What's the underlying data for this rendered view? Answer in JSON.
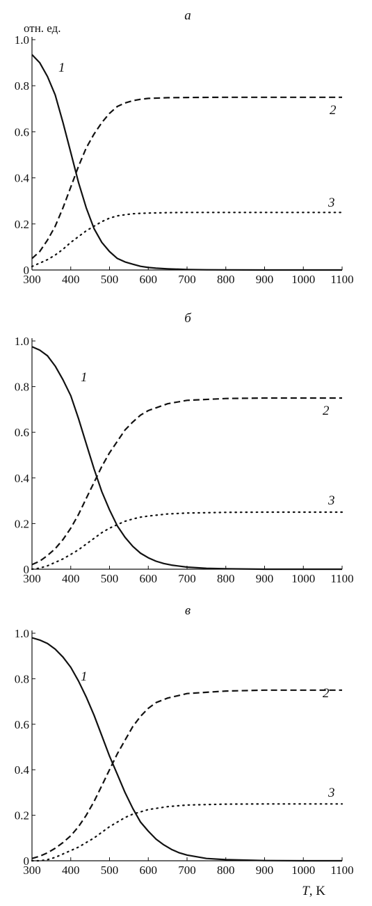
{
  "figure": {
    "y_unit": "отн. ед.",
    "x_label_var": "T",
    "x_label_unit": ", K"
  },
  "chart_data": [
    {
      "type": "line",
      "panel_label": "а",
      "xlim": [
        300,
        1100
      ],
      "ylim": [
        0,
        1.0
      ],
      "x_ticks": [
        "300",
        "400",
        "500",
        "600",
        "700",
        "800",
        "900",
        "1000",
        "1100"
      ],
      "y_ticks": [
        "0",
        "0.2",
        "0.4",
        "0.6",
        "0.8",
        "1.0"
      ],
      "grid": false,
      "series": [
        {
          "name": "1",
          "style": "solid",
          "x": [
            300,
            320,
            340,
            360,
            380,
            400,
            420,
            440,
            460,
            480,
            500,
            520,
            540,
            560,
            580,
            600,
            620,
            650,
            700,
            750,
            800,
            900,
            1000,
            1100
          ],
          "y": [
            0.935,
            0.9,
            0.84,
            0.76,
            0.64,
            0.51,
            0.38,
            0.27,
            0.18,
            0.12,
            0.08,
            0.05,
            0.035,
            0.025,
            0.016,
            0.011,
            0.008,
            0.005,
            0.002,
            0.001,
            0.0005,
            0.0,
            0.0,
            0.0
          ]
        },
        {
          "name": "2",
          "style": "dashed",
          "x": [
            300,
            320,
            340,
            360,
            380,
            400,
            420,
            440,
            460,
            480,
            500,
            520,
            540,
            560,
            580,
            600,
            650,
            700,
            800,
            900,
            1000,
            1100
          ],
          "y": [
            0.05,
            0.08,
            0.13,
            0.19,
            0.27,
            0.36,
            0.45,
            0.53,
            0.59,
            0.64,
            0.68,
            0.71,
            0.725,
            0.735,
            0.741,
            0.745,
            0.748,
            0.749,
            0.75,
            0.75,
            0.75,
            0.75
          ]
        },
        {
          "name": "3",
          "style": "dotted",
          "x": [
            300,
            320,
            340,
            360,
            380,
            400,
            420,
            440,
            460,
            480,
            500,
            520,
            540,
            560,
            580,
            600,
            650,
            700,
            800,
            900,
            1000,
            1100
          ],
          "y": [
            0.015,
            0.03,
            0.045,
            0.065,
            0.09,
            0.12,
            0.145,
            0.17,
            0.19,
            0.21,
            0.225,
            0.235,
            0.24,
            0.244,
            0.246,
            0.247,
            0.249,
            0.25,
            0.25,
            0.25,
            0.25,
            0.25
          ]
        }
      ]
    },
    {
      "type": "line",
      "panel_label": "б",
      "xlim": [
        300,
        1100
      ],
      "ylim": [
        0,
        1.0
      ],
      "x_ticks": [
        "300",
        "400",
        "500",
        "600",
        "700",
        "800",
        "900",
        "1000",
        "1100"
      ],
      "y_ticks": [
        "0",
        "0.2",
        "0.4",
        "0.6",
        "0.8",
        "1.0"
      ],
      "grid": false,
      "series": [
        {
          "name": "1",
          "style": "solid",
          "x": [
            300,
            320,
            340,
            360,
            380,
            400,
            420,
            440,
            460,
            480,
            500,
            520,
            540,
            560,
            580,
            600,
            620,
            640,
            660,
            700,
            750,
            800,
            900,
            1000,
            1100
          ],
          "y": [
            0.975,
            0.96,
            0.935,
            0.89,
            0.83,
            0.76,
            0.66,
            0.55,
            0.44,
            0.34,
            0.26,
            0.19,
            0.14,
            0.1,
            0.07,
            0.05,
            0.035,
            0.025,
            0.018,
            0.009,
            0.004,
            0.002,
            0.0,
            0.0,
            0.0
          ]
        },
        {
          "name": "2",
          "style": "dashed",
          "x": [
            300,
            320,
            340,
            360,
            380,
            400,
            420,
            440,
            460,
            480,
            500,
            520,
            540,
            560,
            580,
            600,
            650,
            700,
            800,
            900,
            1000,
            1100
          ],
          "y": [
            0.02,
            0.035,
            0.06,
            0.09,
            0.13,
            0.18,
            0.24,
            0.31,
            0.38,
            0.45,
            0.51,
            0.56,
            0.61,
            0.645,
            0.675,
            0.695,
            0.725,
            0.74,
            0.748,
            0.75,
            0.75,
            0.75
          ]
        },
        {
          "name": "3",
          "style": "dotted",
          "x": [
            300,
            320,
            340,
            360,
            380,
            400,
            420,
            440,
            460,
            480,
            500,
            520,
            540,
            560,
            580,
            600,
            650,
            700,
            800,
            900,
            1000,
            1100
          ],
          "y": [
            0.0,
            0.005,
            0.015,
            0.03,
            0.045,
            0.065,
            0.085,
            0.11,
            0.135,
            0.16,
            0.18,
            0.195,
            0.21,
            0.22,
            0.228,
            0.233,
            0.242,
            0.246,
            0.249,
            0.25,
            0.25,
            0.25
          ]
        }
      ]
    },
    {
      "type": "line",
      "panel_label": "в",
      "xlim": [
        300,
        1100
      ],
      "ylim": [
        0,
        1.0
      ],
      "x_ticks": [
        "300",
        "400",
        "500",
        "600",
        "700",
        "800",
        "900",
        "1000",
        "1100"
      ],
      "y_ticks": [
        "0",
        "0.2",
        "0.4",
        "0.6",
        "0.8",
        "1.0"
      ],
      "grid": false,
      "series": [
        {
          "name": "1",
          "style": "solid",
          "x": [
            300,
            320,
            340,
            360,
            380,
            400,
            420,
            440,
            460,
            480,
            500,
            520,
            540,
            560,
            580,
            600,
            620,
            640,
            660,
            680,
            700,
            750,
            800,
            900,
            1000,
            1100
          ],
          "y": [
            0.98,
            0.97,
            0.955,
            0.93,
            0.895,
            0.85,
            0.79,
            0.72,
            0.64,
            0.55,
            0.46,
            0.38,
            0.3,
            0.23,
            0.17,
            0.13,
            0.095,
            0.07,
            0.05,
            0.035,
            0.025,
            0.01,
            0.005,
            0.001,
            0.0,
            0.0
          ]
        },
        {
          "name": "2",
          "style": "dashed",
          "x": [
            300,
            320,
            340,
            360,
            380,
            400,
            420,
            440,
            460,
            480,
            500,
            520,
            540,
            560,
            580,
            600,
            620,
            650,
            700,
            800,
            900,
            1000,
            1100
          ],
          "y": [
            0.01,
            0.02,
            0.035,
            0.055,
            0.08,
            0.11,
            0.15,
            0.2,
            0.26,
            0.33,
            0.4,
            0.47,
            0.53,
            0.59,
            0.635,
            0.67,
            0.695,
            0.715,
            0.735,
            0.746,
            0.75,
            0.75,
            0.75
          ]
        },
        {
          "name": "3",
          "style": "dotted",
          "x": [
            300,
            320,
            340,
            360,
            380,
            400,
            420,
            440,
            460,
            480,
            500,
            520,
            540,
            560,
            580,
            600,
            650,
            700,
            800,
            900,
            1000,
            1100
          ],
          "y": [
            0.0,
            0.0,
            0.005,
            0.015,
            0.03,
            0.045,
            0.06,
            0.08,
            0.1,
            0.125,
            0.15,
            0.17,
            0.19,
            0.205,
            0.215,
            0.225,
            0.238,
            0.245,
            0.249,
            0.25,
            0.25,
            0.25
          ]
        }
      ]
    }
  ]
}
